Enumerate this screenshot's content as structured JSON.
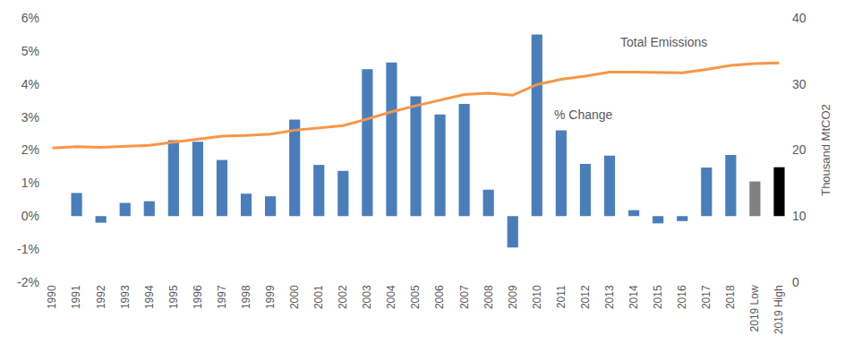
{
  "chart_data": {
    "type": "bar",
    "categories": [
      "1990",
      "1991",
      "1992",
      "1993",
      "1994",
      "1995",
      "1996",
      "1997",
      "1998",
      "1999",
      "2000",
      "2001",
      "2002",
      "2003",
      "2004",
      "2005",
      "2006",
      "2007",
      "2008",
      "2009",
      "2010",
      "2011",
      "2012",
      "2013",
      "2014",
      "2015",
      "2016",
      "2017",
      "2018",
      "2019 Low",
      "2019 High"
    ],
    "series": [
      {
        "name": "% Change",
        "type": "bar",
        "colors": [
          "#4a7ebb",
          "#4a7ebb",
          "#4a7ebb",
          "#4a7ebb",
          "#4a7ebb",
          "#4a7ebb",
          "#4a7ebb",
          "#4a7ebb",
          "#4a7ebb",
          "#4a7ebb",
          "#4a7ebb",
          "#4a7ebb",
          "#4a7ebb",
          "#4a7ebb",
          "#4a7ebb",
          "#4a7ebb",
          "#4a7ebb",
          "#4a7ebb",
          "#4a7ebb",
          "#4a7ebb",
          "#4a7ebb",
          "#4a7ebb",
          "#4a7ebb",
          "#4a7ebb",
          "#4a7ebb",
          "#4a7ebb",
          "#4a7ebb",
          "#4a7ebb",
          "#4a7ebb",
          "#808080",
          "#000000"
        ],
        "values": [
          null,
          0.7,
          -0.2,
          0.4,
          0.45,
          2.3,
          2.25,
          1.7,
          0.68,
          0.6,
          2.92,
          1.55,
          1.37,
          4.45,
          4.65,
          3.63,
          3.08,
          3.4,
          0.8,
          -0.95,
          5.5,
          2.6,
          1.58,
          1.83,
          0.18,
          -0.22,
          -0.15,
          1.47,
          1.85,
          1.05,
          1.48
        ]
      },
      {
        "name": "Total Emissions",
        "type": "line",
        "axis": "y2",
        "color": "#f79646",
        "values": [
          20.3,
          20.5,
          20.4,
          20.5,
          20.7,
          21.2,
          21.7,
          22.1,
          22.2,
          22.4,
          23.0,
          23.4,
          23.7,
          24.7,
          25.8,
          26.7,
          27.5,
          28.4,
          28.6,
          28.3,
          29.9,
          30.7,
          31.2,
          31.8,
          31.8,
          31.7,
          31.7,
          32.2,
          32.8,
          33.1,
          33.2
        ]
      }
    ],
    "ylim": [
      -2,
      6
    ],
    "yticks": [
      {
        "value": -2,
        "label": "-2%"
      },
      {
        "value": -1,
        "label": "-1%"
      },
      {
        "value": 0,
        "label": "0%"
      },
      {
        "value": 1,
        "label": "1%"
      },
      {
        "value": 2,
        "label": "2%"
      },
      {
        "value": 3,
        "label": "3%"
      },
      {
        "value": 4,
        "label": "4%"
      },
      {
        "value": 5,
        "label": "5%"
      },
      {
        "value": 6,
        "label": "6%"
      }
    ],
    "y2label": "Thousand MtCO2",
    "y2lim": [
      0,
      40
    ],
    "y2ticks": [
      0,
      10,
      20,
      30,
      40
    ],
    "grid": false
  }
}
